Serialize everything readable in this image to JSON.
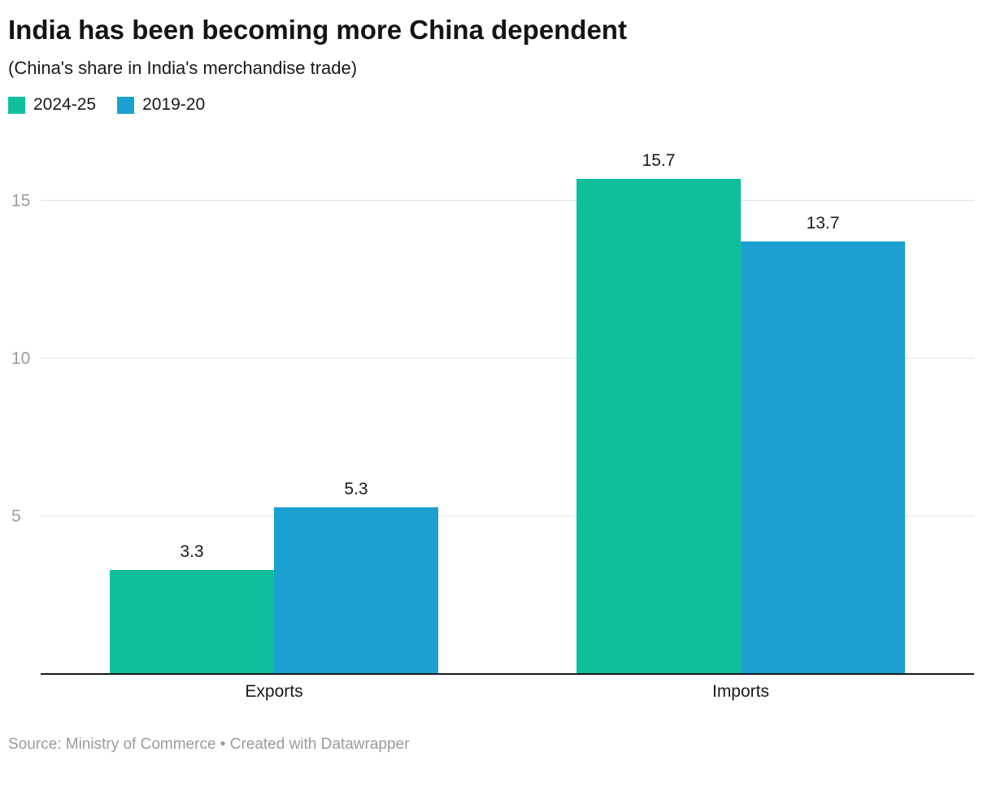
{
  "footer": {
    "source": "Source: Ministry of Commerce • Created with Datawrapper"
  },
  "chart_data": {
    "type": "bar",
    "title": "India has been becoming more China dependent",
    "subtitle": "(China's share in India's merchandise trade)",
    "categories": [
      "Exports",
      "Imports"
    ],
    "series": [
      {
        "name": "2024-25",
        "color": "#0fbf9c",
        "values": [
          3.3,
          15.7
        ]
      },
      {
        "name": "2019-20",
        "color": "#1ca0d0",
        "values": [
          5.3,
          13.7
        ]
      }
    ],
    "xlabel": "",
    "ylabel": "",
    "ylim": [
      0,
      17
    ],
    "yticks": [
      5,
      10,
      15
    ],
    "grid": true,
    "legend_position": "top-left",
    "gridline_color": "#e2e2e2",
    "axis_label_color": "#9b9b9b"
  }
}
